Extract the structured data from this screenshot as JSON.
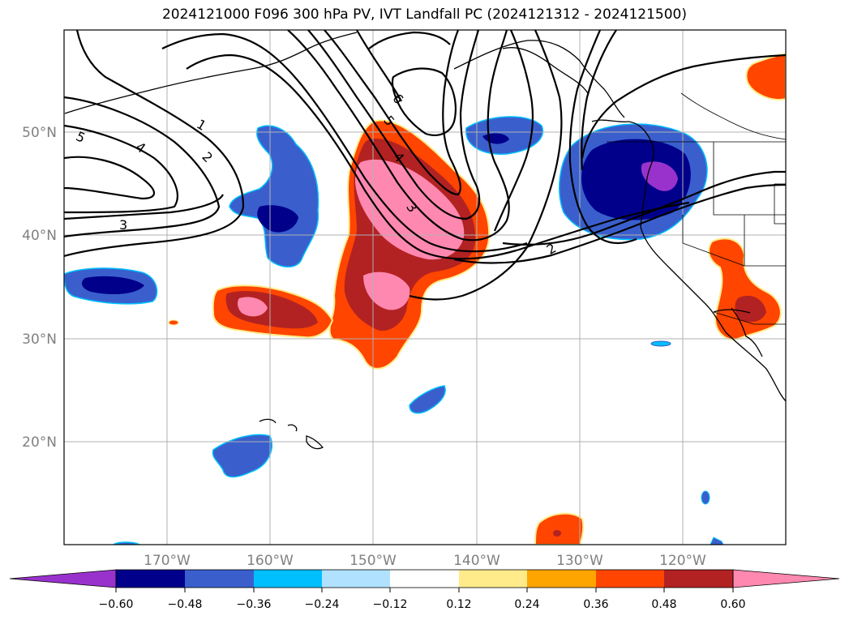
{
  "title": "2024121000 F096 300 hPa PV, IVT Landfall PC (2024121312 - 2024121500)",
  "map": {
    "lon_range": [
      -180,
      -110
    ],
    "lat_range": [
      10,
      60
    ],
    "lat_ticks": [
      {
        "value": 20,
        "label": "20°N"
      },
      {
        "value": 30,
        "label": "30°N"
      },
      {
        "value": 40,
        "label": "40°N"
      },
      {
        "value": 50,
        "label": "50°N"
      }
    ],
    "lon_ticks": [
      {
        "value": -170,
        "label": "170°W"
      },
      {
        "value": -160,
        "label": "160°W"
      },
      {
        "value": -150,
        "label": "150°W"
      },
      {
        "value": -140,
        "label": "140°W"
      },
      {
        "value": -130,
        "label": "130°W"
      },
      {
        "value": -120,
        "label": "120°W"
      }
    ],
    "contour_labels": [
      "5",
      "4",
      "1",
      "2",
      "3",
      "6",
      "5",
      "4",
      "3",
      "2"
    ],
    "colorbar": {
      "colors": [
        "#9932cc",
        "#00008b",
        "#3a5fcd",
        "#00bfff",
        "#b0e2ff",
        "#ffffff",
        "#ffeb8a",
        "#ffa500",
        "#ff4500",
        "#b22222",
        "#ff88b0"
      ],
      "tick_labels": [
        "−0.60",
        "−0.48",
        "−0.36",
        "−0.24",
        "−0.12",
        "0.12",
        "0.24",
        "0.36",
        "0.48",
        "0.60"
      ]
    }
  }
}
